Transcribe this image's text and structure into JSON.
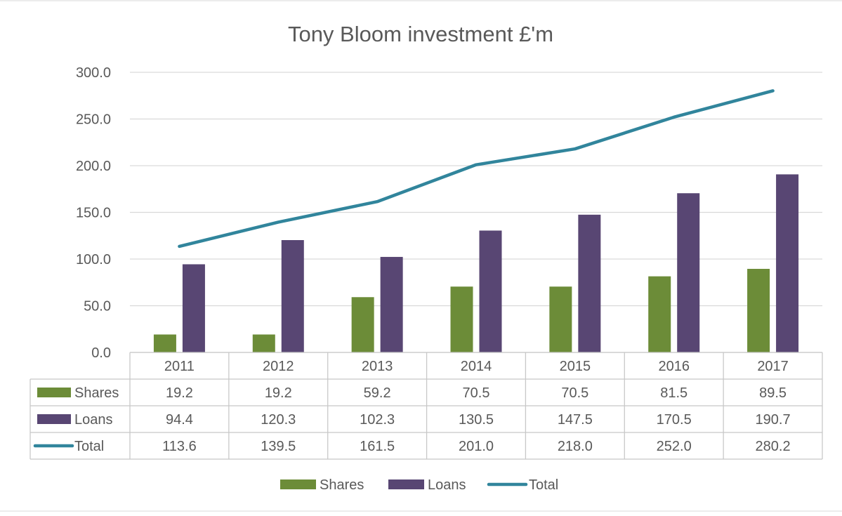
{
  "colors": {
    "shares": "#6c8c38",
    "loans": "#584673",
    "total": "#31859c",
    "grid": "#d9d9d9",
    "text": "#595959"
  },
  "chart_data": {
    "type": "bar",
    "title": "Tony Bloom investment £'m",
    "xlabel": "",
    "ylabel": "",
    "categories": [
      "2011",
      "2012",
      "2013",
      "2014",
      "2015",
      "2016",
      "2017"
    ],
    "ylim": [
      0,
      300
    ],
    "yticks": [
      "0.0",
      "50.0",
      "100.0",
      "150.0",
      "200.0",
      "250.0",
      "300.0"
    ],
    "grid": true,
    "legend_position": "bottom",
    "series": [
      {
        "name": "Shares",
        "kind": "bar",
        "color": "#6c8c38",
        "values": [
          19.2,
          19.2,
          59.2,
          70.5,
          70.5,
          81.5,
          89.5
        ],
        "labels": [
          "19.2",
          "19.2",
          "59.2",
          "70.5",
          "70.5",
          "81.5",
          "89.5"
        ]
      },
      {
        "name": "Loans",
        "kind": "bar",
        "color": "#584673",
        "values": [
          94.4,
          120.3,
          102.3,
          130.5,
          147.5,
          170.5,
          190.7
        ],
        "labels": [
          "94.4",
          "120.3",
          "102.3",
          "130.5",
          "147.5",
          "170.5",
          "190.7"
        ]
      },
      {
        "name": "Total",
        "kind": "line",
        "color": "#31859c",
        "values": [
          113.6,
          139.5,
          161.5,
          201.0,
          218.0,
          252.0,
          280.2
        ],
        "labels": [
          "113.6",
          "139.5",
          "161.5",
          "201.0",
          "218.0",
          "252.0",
          "280.2"
        ]
      }
    ],
    "data_table": true
  }
}
